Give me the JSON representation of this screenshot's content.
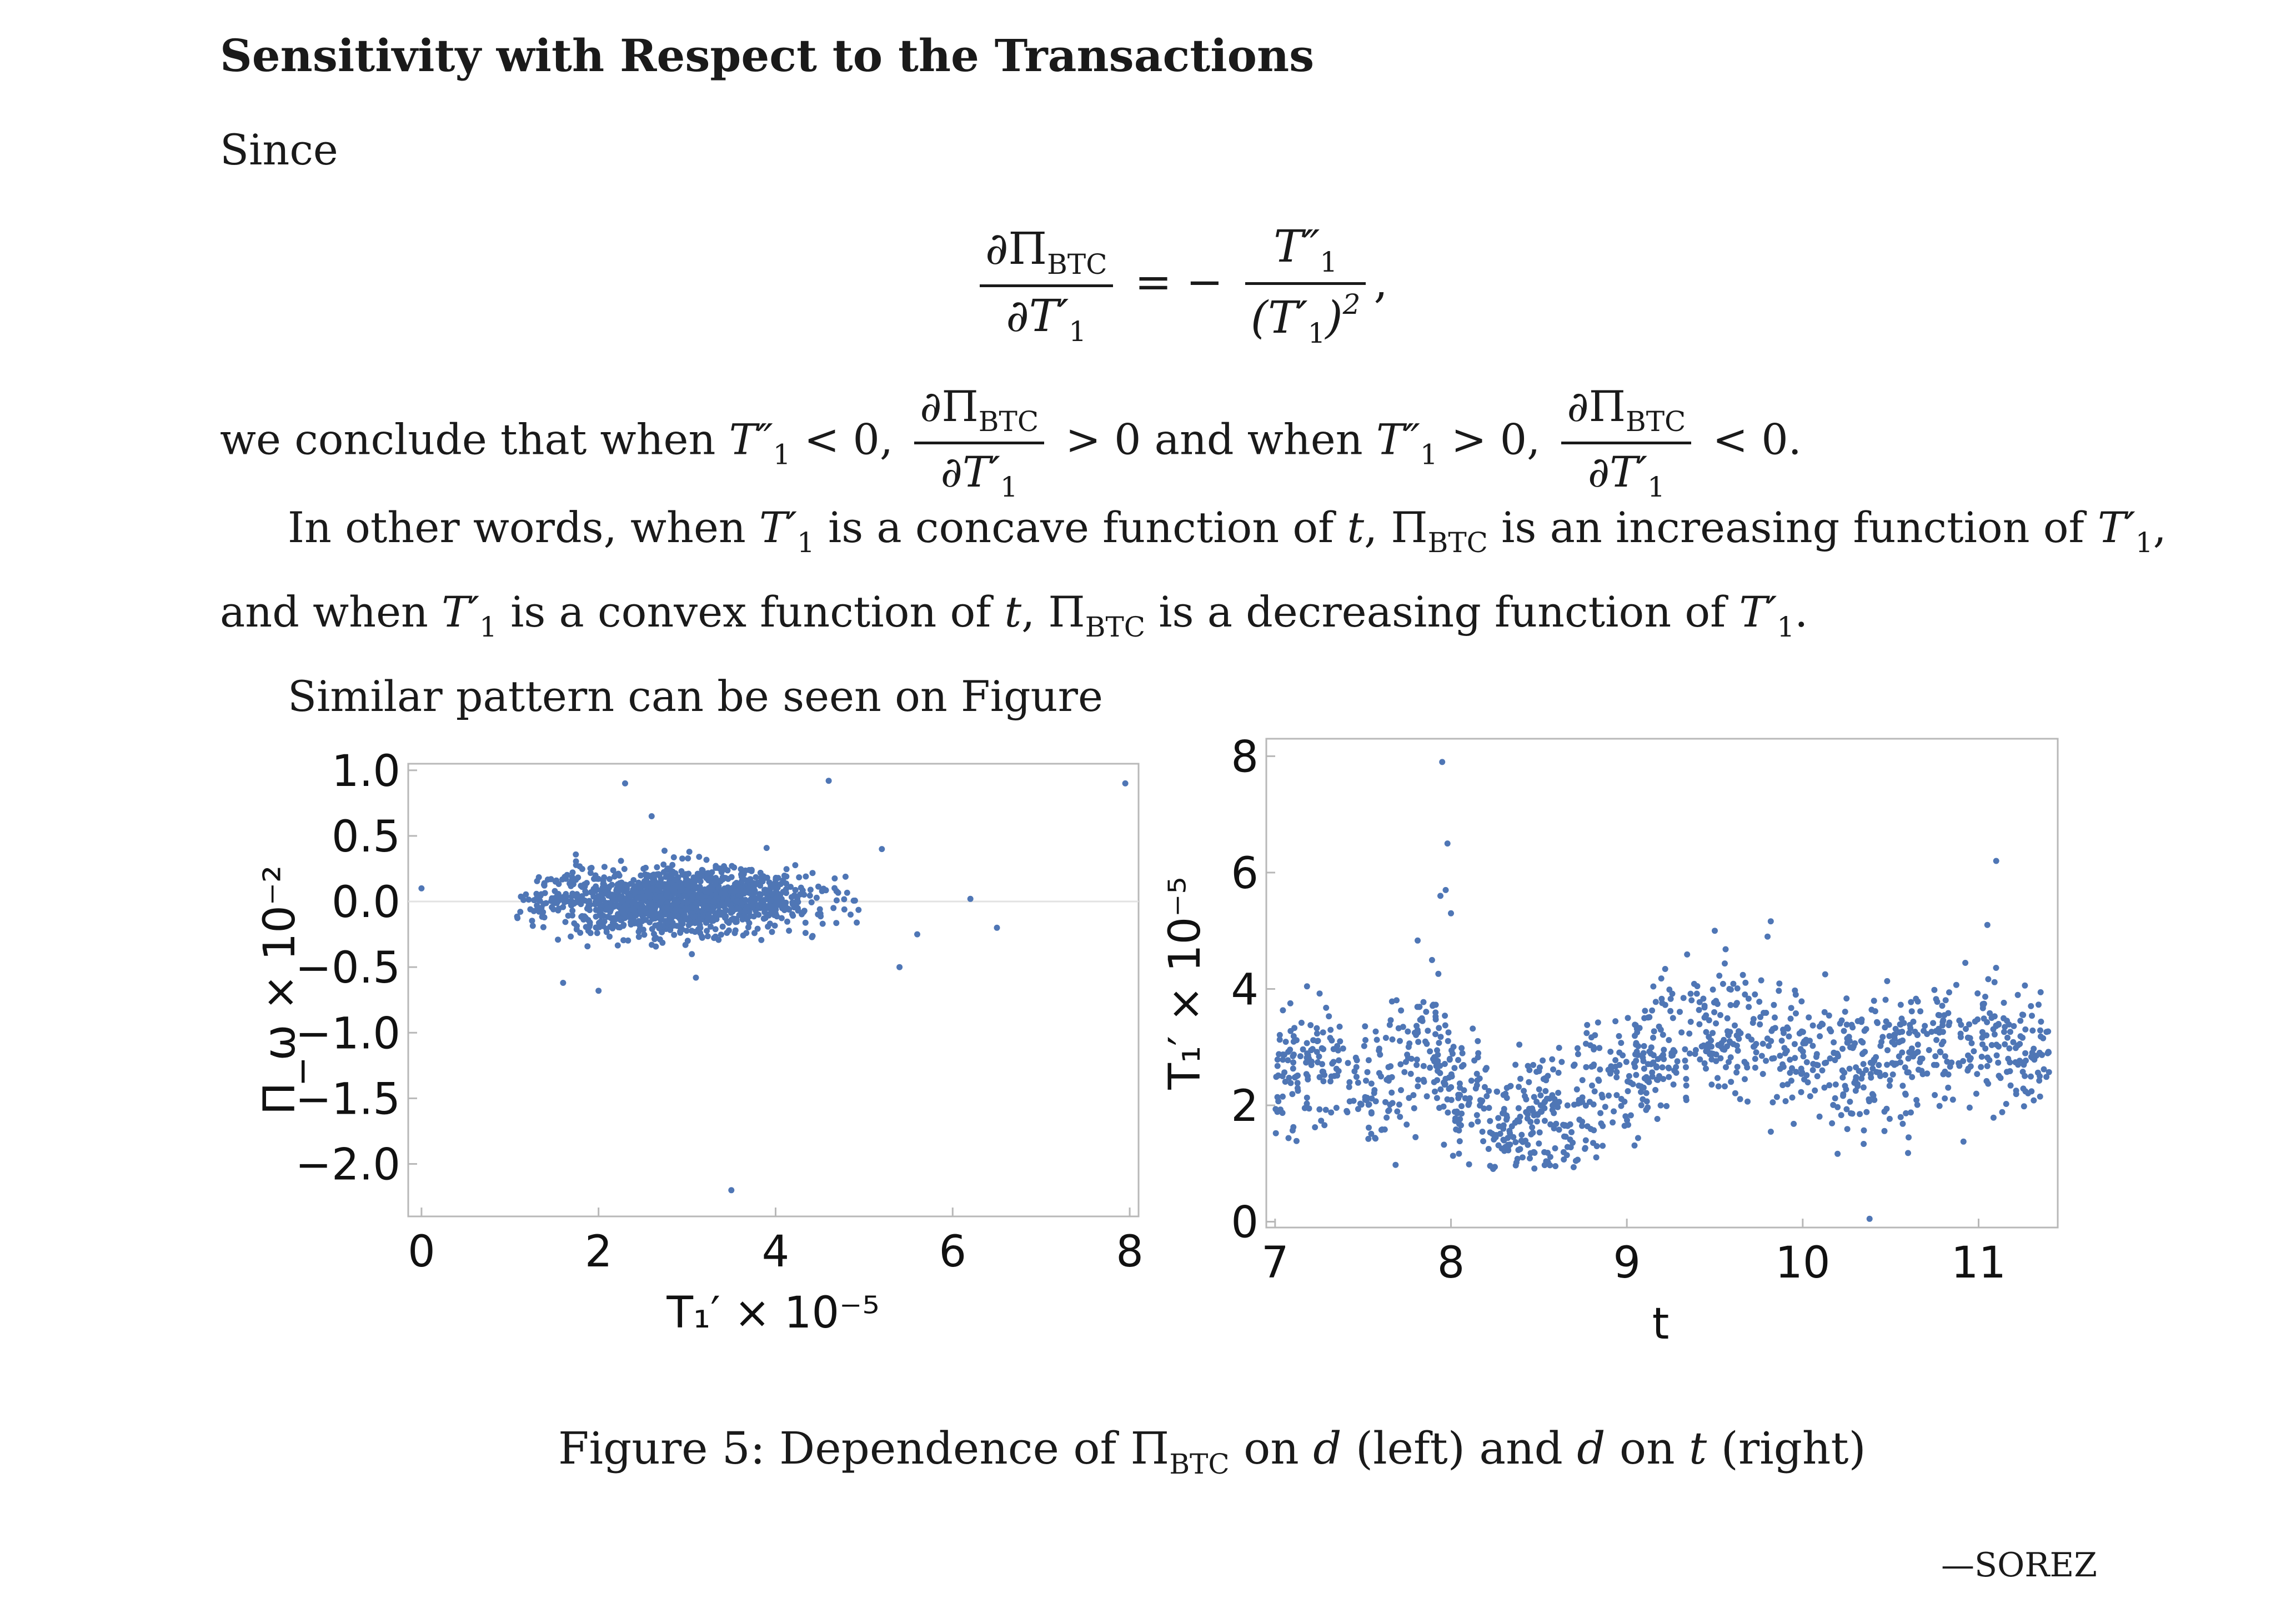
{
  "heading": "Sensitivity with Respect to the Transactions",
  "intro_word": "Since",
  "display_equation": {
    "lhs_numerator": "∂Π",
    "lhs_numerator_sub": "BTC",
    "lhs_denominator": "∂T′",
    "lhs_denominator_sub": "1",
    "equals": "= −",
    "rhs_numerator": "T″",
    "rhs_numerator_sub": "1",
    "rhs_denominator": "(T′",
    "rhs_denominator_sub": "1",
    "rhs_denominator_close": ")",
    "rhs_denominator_sup": "2",
    "trailing": ","
  },
  "conclusion_line": {
    "part1": "we conclude that when ",
    "cond1": "T″",
    "cond1_sub": "1",
    "cond1_rel": " < 0, ",
    "frac_num": "∂Π",
    "frac_num_sub": "BTC",
    "frac_den": "∂T′",
    "frac_den_sub": "1",
    "result1": " > 0 and when ",
    "cond2": "T″",
    "cond2_sub": "1",
    "cond2_rel": " > 0, ",
    "result2": " < 0."
  },
  "paragraph": {
    "line1_a": "In other words, when ",
    "line1_t": "T′",
    "line1_t_sub": "1",
    "line1_b": " is a concave function of ",
    "line1_var": "t",
    "line1_c": ", Π",
    "line1_c_sub": "BTC",
    "line1_d": " is an increasing function of ",
    "line1_e": "T′",
    "line1_e_sub": "1",
    "line1_f": ",",
    "line2_a": "and when ",
    "line2_t": "T′",
    "line2_t_sub": "1",
    "line2_b": " is a convex function of ",
    "line2_var": "t",
    "line2_c": ", Π",
    "line2_c_sub": "BTC",
    "line2_d": " is a decreasing function of ",
    "line2_e": "T′",
    "line2_e_sub": "1",
    "line2_f": "."
  },
  "similar_line": "Similar pattern can be seen on Figure",
  "caption": {
    "prefix": "Figure 5: Dependence of Π",
    "sub": "BTC",
    "middle": " on ",
    "d1": "d",
    "after_d1": " (left) and ",
    "d2": "d",
    "on2": " on ",
    "t": "t",
    "suffix": " (right)"
  },
  "signature": "—SOREZ",
  "colors": {
    "point": "#4f76b5",
    "frame": "#b8b8b8",
    "zero_line": "#e2e2e2"
  },
  "chart_data": [
    {
      "type": "scatter",
      "title": "",
      "xlabel": "T₁′ × 10⁻⁵",
      "ylabel": "Π_ω × 10⁻²",
      "xlim": [
        -0.15,
        8.1
      ],
      "ylim": [
        -2.4,
        1.05
      ],
      "xticks": [
        "0",
        "2",
        "4",
        "6",
        "8"
      ],
      "xtick_values": [
        0,
        2,
        4,
        6,
        8
      ],
      "yticks": [
        "1.0",
        "0.5",
        "0.0",
        "−0.5",
        "−1.0",
        "−1.5",
        "−2.0"
      ],
      "ytick_values": [
        1.0,
        0.5,
        0.0,
        -0.5,
        -1.0,
        -1.5,
        -2.0
      ],
      "cluster": {
        "x_range": [
          1.0,
          5.0
        ],
        "x_center": 2.9,
        "x_spread": 0.75,
        "y_center": 0.0,
        "y_spread": 0.1,
        "count": 1400
      },
      "outliers": [
        {
          "x": 0.0,
          "y": 0.1
        },
        {
          "x": 2.3,
          "y": 0.9
        },
        {
          "x": 4.6,
          "y": 0.92
        },
        {
          "x": 7.95,
          "y": 0.9
        },
        {
          "x": 3.5,
          "y": -2.2
        },
        {
          "x": 5.6,
          "y": -0.25
        },
        {
          "x": 6.5,
          "y": -0.2
        },
        {
          "x": 6.2,
          "y": 0.02
        },
        {
          "x": 5.4,
          "y": -0.5
        },
        {
          "x": 5.2,
          "y": 0.4
        },
        {
          "x": 2.6,
          "y": 0.65
        },
        {
          "x": 1.6,
          "y": -0.62
        },
        {
          "x": 2.0,
          "y": -0.68
        },
        {
          "x": 3.1,
          "y": -0.58
        }
      ]
    },
    {
      "type": "scatter",
      "title": "",
      "xlabel": "t",
      "ylabel": "T₁′ × 10⁻⁵",
      "xlim": [
        6.95,
        11.45
      ],
      "ylim": [
        -0.1,
        8.3
      ],
      "xticks": [
        "7",
        "8",
        "9",
        "10",
        "11"
      ],
      "xtick_values": [
        7,
        8,
        9,
        10,
        11
      ],
      "yticks": [
        "8",
        "6",
        "4",
        "2",
        "0"
      ],
      "ytick_values": [
        8,
        6,
        4,
        2,
        0
      ],
      "trend": [
        {
          "t": 7.0,
          "y": 2.6
        },
        {
          "t": 7.3,
          "y": 2.7
        },
        {
          "t": 7.6,
          "y": 2.3
        },
        {
          "t": 7.9,
          "y": 3.1
        },
        {
          "t": 8.0,
          "y": 2.2
        },
        {
          "t": 8.3,
          "y": 1.7
        },
        {
          "t": 8.6,
          "y": 1.8
        },
        {
          "t": 9.0,
          "y": 2.5
        },
        {
          "t": 9.3,
          "y": 3.3
        },
        {
          "t": 9.7,
          "y": 3.2
        },
        {
          "t": 10.0,
          "y": 2.9
        },
        {
          "t": 10.4,
          "y": 2.7
        },
        {
          "t": 10.8,
          "y": 3.0
        },
        {
          "t": 11.1,
          "y": 3.2
        },
        {
          "t": 11.4,
          "y": 2.8
        }
      ],
      "noise": 0.55,
      "count": 1300,
      "outliers": [
        {
          "x": 7.95,
          "y": 7.9
        },
        {
          "x": 7.98,
          "y": 6.5
        },
        {
          "x": 7.97,
          "y": 5.7
        },
        {
          "x": 7.94,
          "y": 5.6
        },
        {
          "x": 8.0,
          "y": 5.3
        },
        {
          "x": 11.1,
          "y": 6.2
        },
        {
          "x": 11.05,
          "y": 5.1
        },
        {
          "x": 10.38,
          "y": 0.05
        },
        {
          "x": 9.8,
          "y": 4.9
        },
        {
          "x": 9.5,
          "y": 5.0
        }
      ]
    }
  ]
}
